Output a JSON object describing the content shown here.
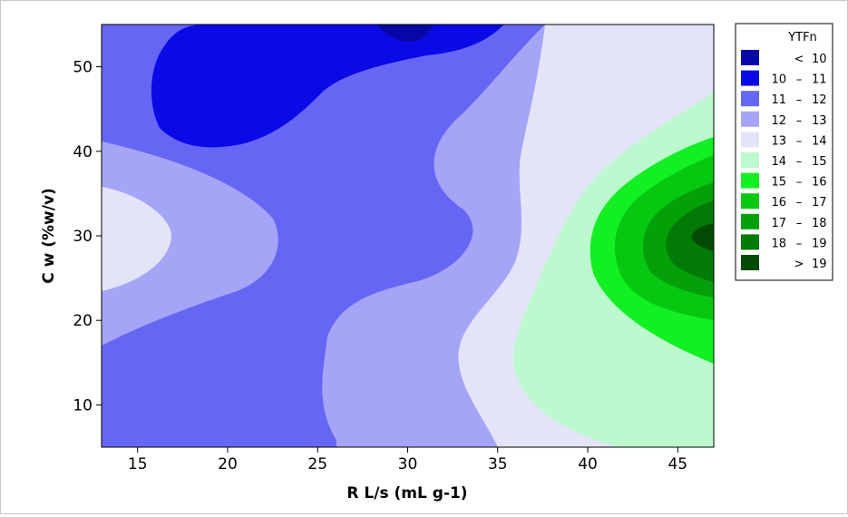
{
  "chart_data": {
    "type": "contour",
    "xlabel": "R L/s (mL g-1)",
    "ylabel": "C w (%w/v)",
    "xlim": [
      13,
      47
    ],
    "ylim": [
      5,
      55
    ],
    "x_ticks": [
      "15",
      "20",
      "25",
      "30",
      "35",
      "40",
      "45"
    ],
    "y_ticks": [
      "10",
      "20",
      "30",
      "40",
      "50"
    ],
    "legend": {
      "title": "YTFn",
      "placement": "right",
      "levels": [
        {
          "label": "< 10",
          "color": "#0808A8"
        },
        {
          "label": "10 – 11",
          "color": "#0A0AE6"
        },
        {
          "label": "11 – 12",
          "color": "#6666F5"
        },
        {
          "label": "12 – 13",
          "color": "#A5A5F7"
        },
        {
          "label": "13 – 14",
          "color": "#E4E4F9"
        },
        {
          "label": "14 – 15",
          "color": "#BCF9CE"
        },
        {
          "label": "15 – 16",
          "color": "#12F022"
        },
        {
          "label": "16 – 17",
          "color": "#06C810"
        },
        {
          "label": "17 – 18",
          "color": "#04A00A"
        },
        {
          "label": "18 – 19",
          "color": "#027A06"
        },
        {
          "label": "> 19",
          "color": "#014A03"
        }
      ]
    },
    "peak": {
      "x": 47,
      "y": 30,
      "level": "> 19"
    },
    "trough": {
      "x": 30,
      "y": 54,
      "level": "< 10"
    }
  }
}
